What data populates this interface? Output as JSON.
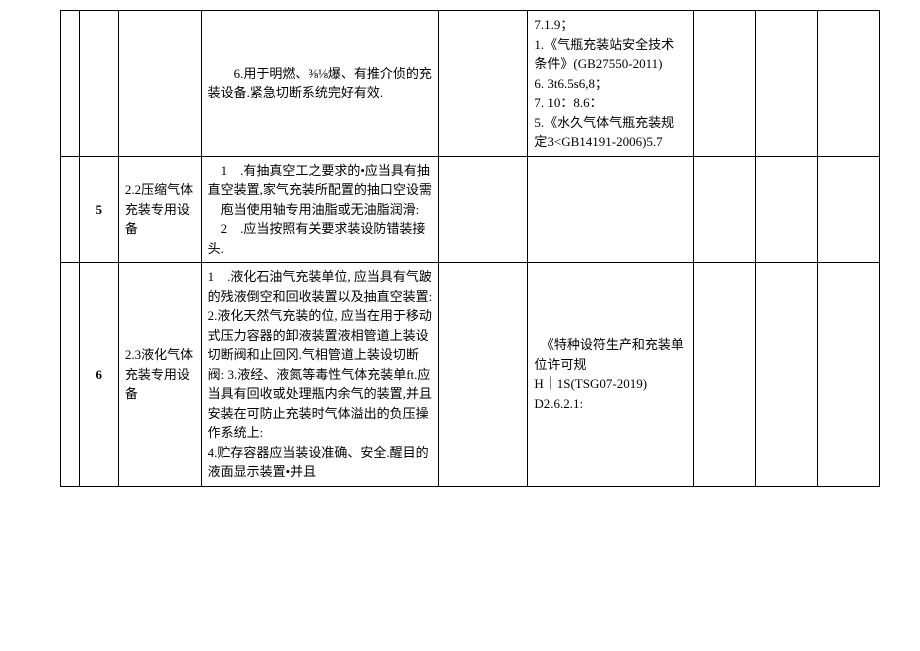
{
  "rows": [
    {
      "num": "",
      "title": "",
      "req": "　　6.用于明燃、⅜⅛爆、有推介侦的充装设备.紧急切断系统完好有效.",
      "blank": "",
      "basis": "7.1.9；\n1.《气瓶充装站安全技术条件》(GB27550-2011)\n6. 3t6.5s6,8；\n7. 10：8.6：\n5.《水久气体气瓶充装规定3<GB14191-2006)5.7",
      "t1": "",
      "t2": "",
      "t3": ""
    },
    {
      "num": "5",
      "title": "2.2压缩气体充装专用设备",
      "req": "　1　.有抽真空工之要求的•应当具有抽直空装置,家气充装所配置的抽口空设需\n　庖当使用轴专用油脂或无油脂润滑:\n　2　.应当按照有关要求装设防错装接头.",
      "blank": "",
      "basis": "",
      "t1": "",
      "t2": "",
      "t3": ""
    },
    {
      "num": "6",
      "title": "2.3液化气体充装专用设备",
      "req": "1　.液化石油气充装单位, 应当具有气跛的残液倒空和回收装置以及抽直空装置:\n2.液化天然气充装的位, 应当在用于移动式压力容器的卸液装置液相管道上装设切断阀和止回冈.气相管道上装设切断阀: 3.液经、液氮等毒性气体充装单ft.应当具有回收或处理瓶内余气的装置,并且安装在可防止充装时气体溢出的负压操作系统上:\n4.贮存容器应当装设准确、安全.醒目的液面显示装置•并且",
      "blank": "",
      "basis": "　《特种设符生产和充装单位许可规\nH｜1S(TSG07-2019)\nD2.6.2.1:",
      "t1": "",
      "t2": "",
      "t3": ""
    }
  ]
}
